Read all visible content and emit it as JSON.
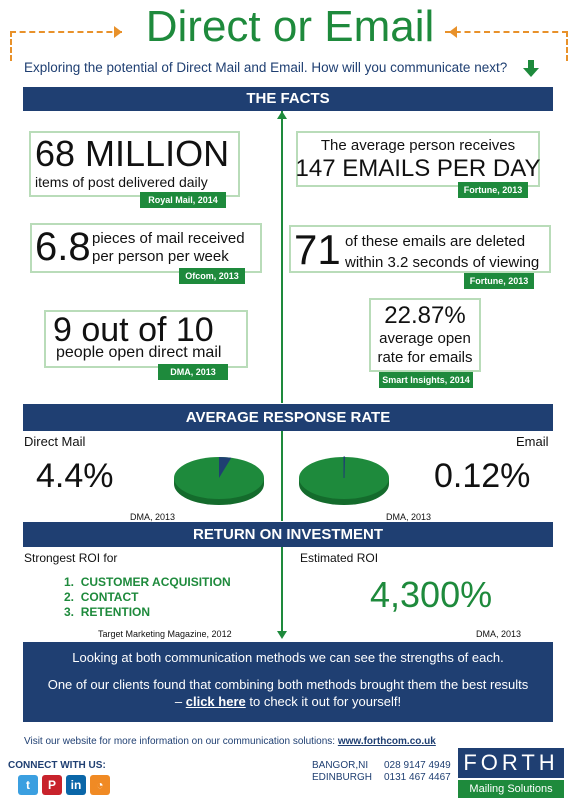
{
  "title": "Direct or Email",
  "subtitle": "Exploring the potential of Direct Mail and Email. How will you communicate next?",
  "facts": {
    "header": "THE FACTS",
    "left": [
      {
        "big": "68 MILLION",
        "text": "items of post delivered daily",
        "source": "Royal Mail, 2014"
      },
      {
        "big": "6.8",
        "text1": "pieces of mail received",
        "text2": "per person per week",
        "source": "Ofcom, 2013"
      },
      {
        "big": "9 out of 10",
        "text": "people open direct mail",
        "source": "DMA, 2013"
      }
    ],
    "right": [
      {
        "text": "The average person receives",
        "big": "147 EMAILS PER DAY",
        "source": "Fortune, 2013"
      },
      {
        "big": "71",
        "text1": "of these emails are deleted",
        "text2": "within 3.2 seconds of viewing",
        "source": "Fortune, 2013"
      },
      {
        "big": "22.87%",
        "text1": "average open",
        "text2": "rate for emails",
        "source": "Smart Insights, 2014"
      }
    ]
  },
  "response": {
    "header": "AVERAGE RESPONSE RATE",
    "direct_label": "Direct Mail",
    "direct_value": "4.4%",
    "direct_source": "DMA, 2013",
    "email_label": "Email",
    "email_value": "0.12%",
    "email_source": "DMA, 2013",
    "direct_rate": 4.4,
    "email_rate": 0.12
  },
  "roi": {
    "header": "RETURN ON INVESTMENT",
    "left_label": "Strongest ROI for",
    "items": [
      "CUSTOMER ACQUISITION",
      "CONTACT",
      "RETENTION"
    ],
    "left_source": "Target Marketing Magazine, 2012",
    "right_label": "Estimated ROI",
    "right_value": "4,300%",
    "right_source": "DMA, 2013"
  },
  "cta": {
    "line1": "Looking at both communication methods we can see the strengths of each.",
    "line2": "One of our clients found that combining both methods brought them the best results",
    "dash": "–",
    "link": "click here",
    "line3_rest": "to check it out for yourself!"
  },
  "footer": {
    "visit_text": "Visit our website for more information on our communication solutions:",
    "url": "www.forthcom.co.uk",
    "connect": "CONNECT WITH US:",
    "office1": "BANGOR,NI",
    "phone1": "028 9147 4949",
    "office2": "EDINBURGH",
    "phone2": "0131 467 4467",
    "brand": "FORTH",
    "brand_sub": "Mailing Solutions"
  },
  "social_icons": [
    "twitter-icon",
    "pinterest-icon",
    "linkedin-icon",
    "rss-icon"
  ],
  "colors": {
    "green": "#1e8a3c",
    "navy": "#1f3f72",
    "orange": "#e8912a"
  }
}
